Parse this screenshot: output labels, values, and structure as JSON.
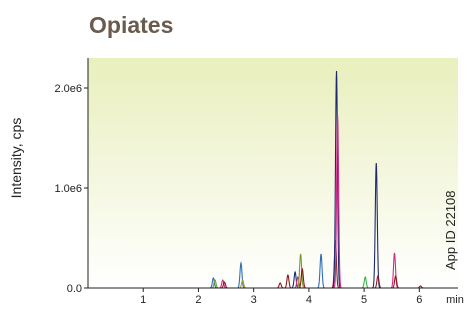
{
  "chart_data": {
    "type": "line",
    "title": "Opiates",
    "ylabel": "Intensity, cps",
    "xlabel": "min",
    "annotation": "App ID 22108",
    "xlim": [
      0,
      6.7
    ],
    "ylim": [
      0,
      2300000
    ],
    "x_ticks": [
      {
        "value": 1,
        "label": "1"
      },
      {
        "value": 2,
        "label": "2"
      },
      {
        "value": 3,
        "label": "3"
      },
      {
        "value": 4,
        "label": "4"
      },
      {
        "value": 5,
        "label": "5"
      },
      {
        "value": 6,
        "label": "6"
      }
    ],
    "y_ticks": [
      {
        "value": 0,
        "label": "0.0"
      },
      {
        "value": 1000000,
        "label": "1.0e6"
      },
      {
        "value": 2000000,
        "label": "2.0e6"
      }
    ],
    "background_gradient": [
      "#e9efbd",
      "#ffffff"
    ],
    "peaks": [
      {
        "rt": 2.27,
        "height": 100000,
        "color": "#2f6fb7"
      },
      {
        "rt": 2.3,
        "height": 80000,
        "color": "#7a9a2a"
      },
      {
        "rt": 2.44,
        "height": 80000,
        "color": "#cc2c8a"
      },
      {
        "rt": 2.47,
        "height": 60000,
        "color": "#8b1a1a"
      },
      {
        "rt": 2.77,
        "height": 250000,
        "color": "#2f6fb7"
      },
      {
        "rt": 2.8,
        "height": 80000,
        "color": "#b0a020"
      },
      {
        "rt": 3.48,
        "height": 50000,
        "color": "#8b1a1a"
      },
      {
        "rt": 3.62,
        "height": 130000,
        "color": "#8b1a1a"
      },
      {
        "rt": 3.75,
        "height": 160000,
        "color": "#1f2a6e"
      },
      {
        "rt": 3.8,
        "height": 110000,
        "color": "#cc2c8a"
      },
      {
        "rt": 3.85,
        "height": 340000,
        "color": "#7a9a2a"
      },
      {
        "rt": 3.88,
        "height": 190000,
        "color": "#8b1a1a"
      },
      {
        "rt": 4.22,
        "height": 340000,
        "color": "#2f6fb7"
      },
      {
        "rt": 4.48,
        "height": 480000,
        "color": "#8b1a1a"
      },
      {
        "rt": 4.5,
        "height": 2170000,
        "color": "#1f2a6e"
      },
      {
        "rt": 4.52,
        "height": 1720000,
        "color": "#cc2c8a"
      },
      {
        "rt": 5.02,
        "height": 110000,
        "color": "#3bb04a"
      },
      {
        "rt": 5.22,
        "height": 1250000,
        "color": "#1f2a6e"
      },
      {
        "rt": 5.25,
        "height": 120000,
        "color": "#8b1a1a"
      },
      {
        "rt": 5.55,
        "height": 350000,
        "color": "#cc2c8a"
      },
      {
        "rt": 5.57,
        "height": 120000,
        "color": "#8b1a1a"
      },
      {
        "rt": 6.02,
        "height": 20000,
        "color": "#8b1a1a"
      }
    ]
  }
}
